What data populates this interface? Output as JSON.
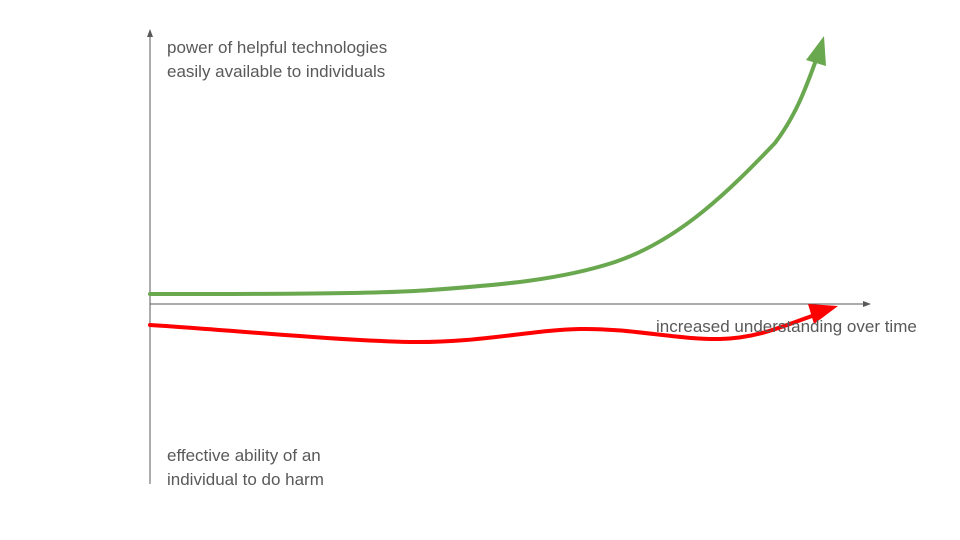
{
  "labels": {
    "top_line1": "power of helpful technologies",
    "top_line2": "easily available to individuals",
    "bottom_line1": "effective ability of an",
    "bottom_line2": "individual to do harm",
    "x_axis": "increased understanding over time"
  },
  "colors": {
    "helpful_curve": "#6aa84f",
    "harm_curve": "#ff0000",
    "axis": "#595959",
    "text": "#595959"
  }
}
